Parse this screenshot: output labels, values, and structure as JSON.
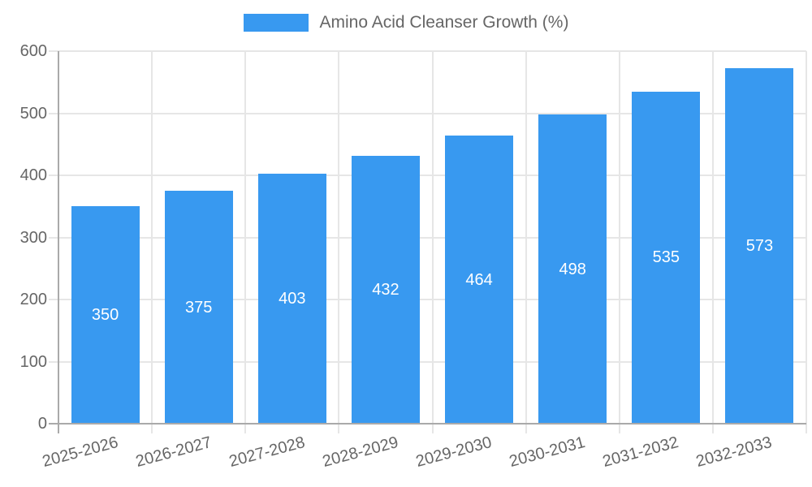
{
  "legend": {
    "label": "Amino Acid Cleanser Growth (%)"
  },
  "chart_data": {
    "type": "bar",
    "title": "",
    "xlabel": "",
    "ylabel": "",
    "categories": [
      "2025-2026",
      "2026-2027",
      "2027-2028",
      "2028-2029",
      "2029-2030",
      "2030-2031",
      "2031-2032",
      "2032-2033"
    ],
    "series": [
      {
        "name": "Amino Acid Cleanser Growth (%)",
        "values": [
          350,
          375,
          403,
          432,
          464,
          498,
          535,
          573
        ]
      }
    ],
    "value_labels_shown": true,
    "ylim": [
      0,
      600
    ],
    "yticks": [
      0,
      100,
      200,
      300,
      400,
      500,
      600
    ],
    "grid": true,
    "legend_position": "top",
    "colors": {
      "bar": "#3899F0",
      "grid": "#E6E6E6",
      "axis": "#AAAAAA",
      "tick_text": "#666666",
      "value_text": "#FFFFFF"
    }
  }
}
